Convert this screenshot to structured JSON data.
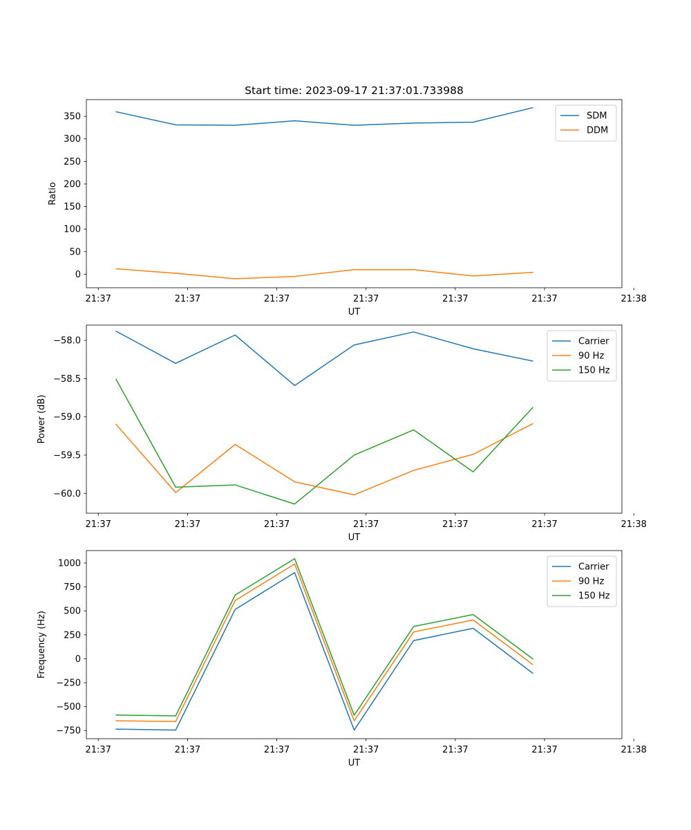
{
  "chart_data": [
    {
      "type": "line",
      "title": "Start time: 2023-09-17 21:37:01.733988",
      "xlabel": "UT",
      "ylabel": "Ratio",
      "x": [
        0,
        1,
        2,
        3,
        4,
        5,
        6,
        7
      ],
      "xlim": [
        -0.5,
        8.5
      ],
      "x_ticks": [
        {
          "pos": -0.3,
          "label": "21:37"
        },
        {
          "pos": 1.2,
          "label": "21:37"
        },
        {
          "pos": 2.7,
          "label": "21:37"
        },
        {
          "pos": 4.2,
          "label": "21:37"
        },
        {
          "pos": 5.7,
          "label": "21:37"
        },
        {
          "pos": 7.2,
          "label": "21:37"
        },
        {
          "pos": 8.7,
          "label": "21:38"
        }
      ],
      "ylim": [
        -30,
        387
      ],
      "y_ticks": [
        0,
        50,
        100,
        150,
        200,
        250,
        300,
        350
      ],
      "y_tick_labels": [
        "0",
        "50",
        "100",
        "150",
        "200",
        "250",
        "300",
        "350"
      ],
      "legend": "top-right",
      "series": [
        {
          "name": "SDM",
          "color": "#1f77b4",
          "values": [
            360,
            331,
            330,
            340,
            330,
            335,
            337,
            369
          ]
        },
        {
          "name": "DDM",
          "color": "#ff7f0e",
          "values": [
            12,
            2,
            -10,
            -5,
            10,
            10,
            -4,
            4
          ]
        }
      ]
    },
    {
      "type": "line",
      "title": "",
      "xlabel": "UT",
      "ylabel": "Power (dB)",
      "x": [
        0,
        1,
        2,
        3,
        4,
        5,
        6,
        7
      ],
      "xlim": [
        -0.5,
        8.5
      ],
      "x_ticks": [
        {
          "pos": -0.3,
          "label": "21:37"
        },
        {
          "pos": 1.2,
          "label": "21:37"
        },
        {
          "pos": 2.7,
          "label": "21:37"
        },
        {
          "pos": 4.2,
          "label": "21:37"
        },
        {
          "pos": 5.7,
          "label": "21:37"
        },
        {
          "pos": 7.2,
          "label": "21:37"
        },
        {
          "pos": 8.7,
          "label": "21:38"
        }
      ],
      "ylim": [
        -60.26,
        -57.8
      ],
      "y_ticks": [
        -60.0,
        -59.5,
        -59.0,
        -58.5,
        -58.0
      ],
      "y_tick_labels": [
        "−60.0",
        "−59.5",
        "−59.0",
        "−58.5",
        "−58.0"
      ],
      "legend": "top-right",
      "series": [
        {
          "name": "Carrier",
          "color": "#1f77b4",
          "values": [
            -57.88,
            -58.3,
            -57.93,
            -58.59,
            -58.06,
            -57.89,
            -58.11,
            -58.27
          ]
        },
        {
          "name": "90 Hz",
          "color": "#ff7f0e",
          "values": [
            -59.1,
            -59.99,
            -59.36,
            -59.85,
            -60.02,
            -59.7,
            -59.49,
            -59.09
          ]
        },
        {
          "name": "150 Hz",
          "color": "#2ca02c",
          "values": [
            -58.51,
            -59.92,
            -59.89,
            -60.14,
            -59.5,
            -59.17,
            -59.72,
            -58.88
          ]
        }
      ]
    },
    {
      "type": "line",
      "title": "",
      "xlabel": "UT",
      "ylabel": "Frequency (Hz)",
      "x": [
        0,
        1,
        2,
        3,
        4,
        5,
        6,
        7
      ],
      "xlim": [
        -0.5,
        8.5
      ],
      "x_ticks": [
        {
          "pos": -0.3,
          "label": "21:37"
        },
        {
          "pos": 1.2,
          "label": "21:37"
        },
        {
          "pos": 2.7,
          "label": "21:37"
        },
        {
          "pos": 4.2,
          "label": "21:37"
        },
        {
          "pos": 5.7,
          "label": "21:37"
        },
        {
          "pos": 7.2,
          "label": "21:37"
        },
        {
          "pos": 8.7,
          "label": "21:38"
        }
      ],
      "ylim": [
        -835,
        1130
      ],
      "y_ticks": [
        -750,
        -500,
        -250,
        0,
        250,
        500,
        750,
        1000
      ],
      "y_tick_labels": [
        "−750",
        "−500",
        "−250",
        "0",
        "250",
        "500",
        "750",
        "1000"
      ],
      "legend": "top-right",
      "series": [
        {
          "name": "Carrier",
          "color": "#1f77b4",
          "values": [
            -735,
            -745,
            515,
            900,
            -745,
            190,
            318,
            -150
          ]
        },
        {
          "name": "90 Hz",
          "color": "#ff7f0e",
          "values": [
            -648,
            -655,
            608,
            990,
            -648,
            280,
            405,
            -60
          ]
        },
        {
          "name": "150 Hz",
          "color": "#2ca02c",
          "values": [
            -588,
            -597,
            665,
            1045,
            -590,
            337,
            462,
            0
          ]
        }
      ]
    }
  ]
}
